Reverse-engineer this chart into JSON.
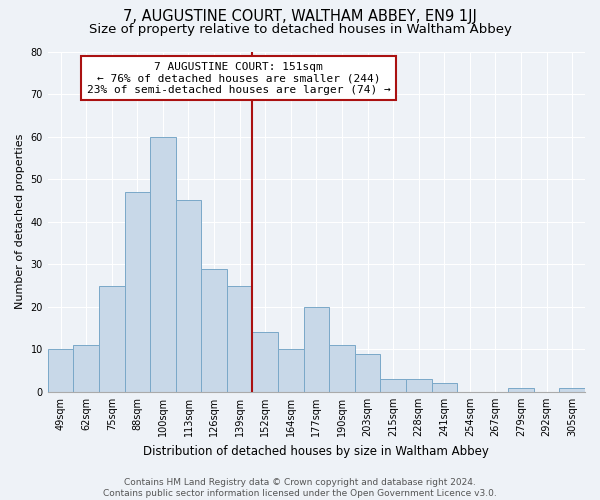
{
  "title": "7, AUGUSTINE COURT, WALTHAM ABBEY, EN9 1JJ",
  "subtitle": "Size of property relative to detached houses in Waltham Abbey",
  "xlabel": "Distribution of detached houses by size in Waltham Abbey",
  "ylabel": "Number of detached properties",
  "bin_labels": [
    "49sqm",
    "62sqm",
    "75sqm",
    "88sqm",
    "100sqm",
    "113sqm",
    "126sqm",
    "139sqm",
    "152sqm",
    "164sqm",
    "177sqm",
    "190sqm",
    "203sqm",
    "215sqm",
    "228sqm",
    "241sqm",
    "254sqm",
    "267sqm",
    "279sqm",
    "292sqm",
    "305sqm"
  ],
  "bar_values": [
    10,
    11,
    25,
    47,
    60,
    45,
    29,
    25,
    14,
    10,
    20,
    11,
    9,
    3,
    3,
    2,
    0,
    0,
    1,
    0,
    1
  ],
  "bar_color": "#c8d8e8",
  "bar_edge_color": "#7aa8c8",
  "reference_line_color": "#aa1111",
  "annotation_text": "7 AUGUSTINE COURT: 151sqm\n← 76% of detached houses are smaller (244)\n23% of semi-detached houses are larger (74) →",
  "annotation_box_color": "#ffffff",
  "annotation_box_edge": "#aa1111",
  "ylim": [
    0,
    80
  ],
  "yticks": [
    0,
    10,
    20,
    30,
    40,
    50,
    60,
    70,
    80
  ],
  "bg_color": "#eef2f7",
  "grid_color": "#ffffff",
  "footer_text": "Contains HM Land Registry data © Crown copyright and database right 2024.\nContains public sector information licensed under the Open Government Licence v3.0.",
  "title_fontsize": 10.5,
  "subtitle_fontsize": 9.5,
  "xlabel_fontsize": 8.5,
  "ylabel_fontsize": 8,
  "tick_fontsize": 7,
  "annotation_fontsize": 8,
  "footer_fontsize": 6.5
}
